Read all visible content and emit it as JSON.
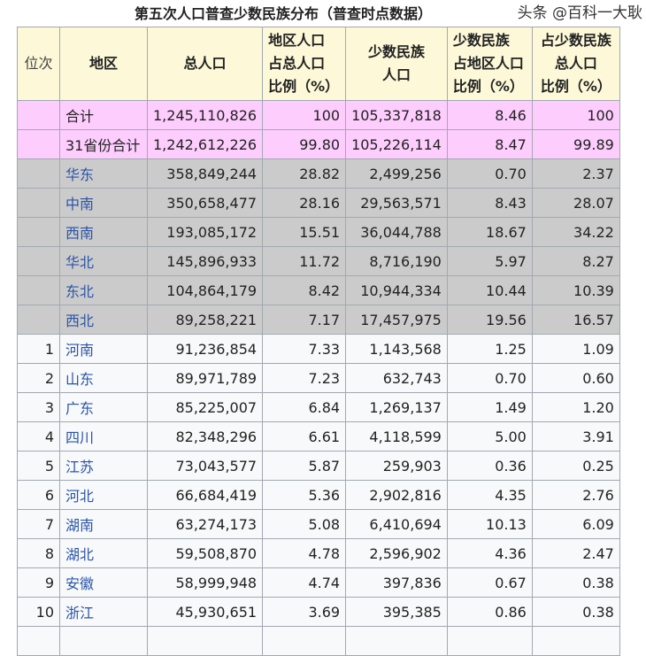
{
  "caption": "第五次人口普查少数民族分布（普查时点数据）",
  "headers": [
    "位次",
    "地区",
    "总人口",
    "地区人口\n占总人口\n比例（%）",
    "少数民族\n人口",
    "少数民族\n占地区人口\n比例（%）",
    "占少数民族\n总人口\n比例（%）"
  ],
  "colors": {
    "header_bg": "#fcf8d8",
    "total_bg": "#fdcdfd",
    "region_bg": "#cbcbcb",
    "row_bg": "#f8f9fa",
    "link": "#2a55a8"
  },
  "rows": [
    {
      "type": "total",
      "cells": [
        "",
        "合计",
        "1,245,110,826",
        "100",
        "105,337,818",
        "8.46",
        "100"
      ]
    },
    {
      "type": "total",
      "cells": [
        "",
        "31省份合计",
        "1,242,612,226",
        "99.80",
        "105,226,114",
        "8.47",
        "99.89"
      ]
    },
    {
      "type": "region",
      "cells": [
        "",
        "华东",
        "358,849,244",
        "28.82",
        "2,499,256",
        "0.70",
        "2.37"
      ]
    },
    {
      "type": "region",
      "cells": [
        "",
        "中南",
        "350,658,477",
        "28.16",
        "29,563,571",
        "8.43",
        "28.07"
      ]
    },
    {
      "type": "region",
      "cells": [
        "",
        "西南",
        "193,085,172",
        "15.51",
        "36,044,788",
        "18.67",
        "34.22"
      ]
    },
    {
      "type": "region",
      "cells": [
        "",
        "华北",
        "145,896,933",
        "11.72",
        "8,716,190",
        "5.97",
        "8.27"
      ]
    },
    {
      "type": "region",
      "cells": [
        "",
        "东北",
        "104,864,179",
        "8.42",
        "10,944,334",
        "10.44",
        "10.39"
      ]
    },
    {
      "type": "region",
      "cells": [
        "",
        "西北",
        "89,258,221",
        "7.17",
        "17,457,975",
        "19.56",
        "16.57"
      ]
    },
    {
      "type": "prov",
      "cells": [
        "1",
        "河南",
        "91,236,854",
        "7.33",
        "1,143,568",
        "1.25",
        "1.09"
      ]
    },
    {
      "type": "prov",
      "cells": [
        "2",
        "山东",
        "89,971,789",
        "7.23",
        "632,743",
        "0.70",
        "0.60"
      ]
    },
    {
      "type": "prov",
      "cells": [
        "3",
        "广东",
        "85,225,007",
        "6.84",
        "1,269,137",
        "1.49",
        "1.20"
      ]
    },
    {
      "type": "prov",
      "cells": [
        "4",
        "四川",
        "82,348,296",
        "6.61",
        "4,118,599",
        "5.00",
        "3.91"
      ]
    },
    {
      "type": "prov",
      "cells": [
        "5",
        "江苏",
        "73,043,577",
        "5.87",
        "259,903",
        "0.36",
        "0.25"
      ]
    },
    {
      "type": "prov",
      "cells": [
        "6",
        "河北",
        "66,684,419",
        "5.36",
        "2,902,816",
        "4.35",
        "2.76"
      ]
    },
    {
      "type": "prov",
      "cells": [
        "7",
        "湖南",
        "63,274,173",
        "5.08",
        "6,410,694",
        "10.13",
        "6.09"
      ]
    },
    {
      "type": "prov",
      "cells": [
        "8",
        "湖北",
        "59,508,870",
        "4.78",
        "2,596,902",
        "4.36",
        "2.47"
      ]
    },
    {
      "type": "prov",
      "cells": [
        "9",
        "安徽",
        "58,999,948",
        "4.74",
        "397,836",
        "0.67",
        "0.38"
      ]
    },
    {
      "type": "prov",
      "cells": [
        "10",
        "浙江",
        "45,930,651",
        "3.69",
        "395,385",
        "0.86",
        "0.38"
      ]
    },
    {
      "type": "prov",
      "cells": [
        "",
        "",
        "",
        "",
        "",
        "",
        ""
      ]
    }
  ],
  "watermark": "头条 @百科一大耿"
}
